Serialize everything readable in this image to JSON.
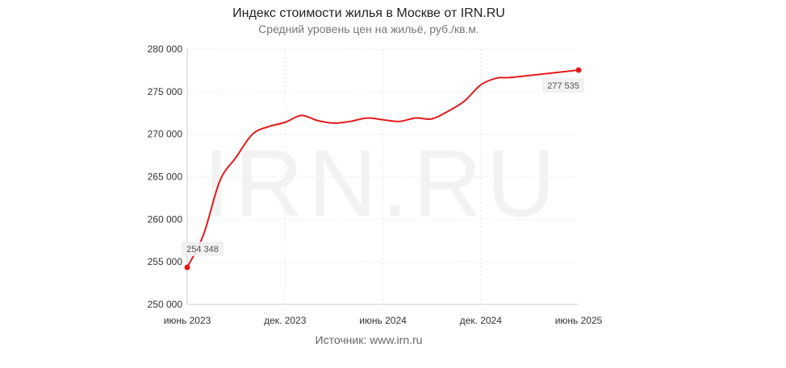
{
  "title": "Индекс стоимости жилья в Москве от IRN.RU",
  "subtitle": "Средний уровень цен на жильё, руб./кв.м.",
  "source": "Источник: www.irn.ru",
  "watermark": "IRN.RU",
  "colors": {
    "line": "#e31a1c",
    "grid": "#e6e6e6",
    "axis": "#cccccc"
  },
  "chart_data": {
    "type": "line",
    "title": "Индекс стоимости жилья в Москве от IRN.RU",
    "subtitle": "Средний уровень цен на жильё, руб./кв.м.",
    "xlabel": "",
    "ylabel": "",
    "ylim": [
      250000,
      280000
    ],
    "yticks": [
      250000,
      255000,
      260000,
      265000,
      270000,
      275000,
      280000
    ],
    "ytick_labels": [
      "250 000",
      "255 000",
      "260 000",
      "265 000",
      "270 000",
      "275 000",
      "280 000"
    ],
    "xlim": [
      "2023-06",
      "2025-06"
    ],
    "xticks": [
      "2023-06",
      "2023-12",
      "2024-06",
      "2024-12",
      "2025-06"
    ],
    "xtick_labels": [
      "июнь 2023",
      "дек. 2023",
      "июнь 2024",
      "дек. 2024",
      "июнь 2025"
    ],
    "grid": true,
    "x": [
      "2023-06",
      "2023-07",
      "2023-08",
      "2023-09",
      "2023-10",
      "2023-11",
      "2023-12",
      "2024-01",
      "2024-02",
      "2024-03",
      "2024-04",
      "2024-05",
      "2024-06",
      "2024-07",
      "2024-08",
      "2024-09",
      "2024-10",
      "2024-11",
      "2024-12",
      "2025-01",
      "2025-02",
      "2025-03",
      "2025-04",
      "2025-05",
      "2025-06"
    ],
    "series": [
      {
        "values": [
          254348,
          258200,
          264500,
          267300,
          270000,
          270900,
          271400,
          272200,
          271600,
          271300,
          271500,
          271900,
          271700,
          271500,
          271900,
          271800,
          272700,
          273900,
          275800,
          276600,
          276700,
          277535,
          277535,
          277535,
          277535
        ]
      }
    ],
    "data_labels": [
      {
        "x": "2023-06",
        "text": "254 348"
      },
      {
        "x": "2025-06",
        "text": "277 535"
      }
    ]
  }
}
